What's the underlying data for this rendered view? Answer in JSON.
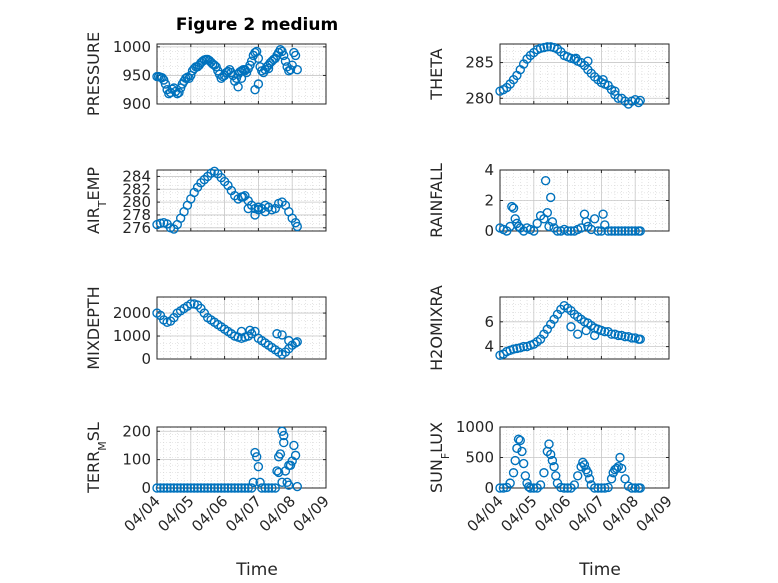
{
  "figure": {
    "title": "Figure 2 medium",
    "xlabel": "Time",
    "x_tick_labels": [
      "04/04",
      "04/05",
      "04/06",
      "04/07",
      "04/08",
      "04/09"
    ],
    "marker_color": "#0072BD"
  },
  "chart_data": [
    {
      "type": "scatter",
      "ylabel": "PRESSURE",
      "yticks": [
        900,
        950,
        1000
      ],
      "ylim": [
        900,
        1005
      ],
      "xlim": [
        0,
        5
      ],
      "grid": true,
      "x": [
        0.0,
        0.05,
        0.1,
        0.15,
        0.2,
        0.25,
        0.3,
        0.35,
        0.4,
        0.45,
        0.5,
        0.55,
        0.6,
        0.65,
        0.7,
        0.75,
        0.8,
        0.85,
        0.9,
        0.95,
        1.0,
        1.05,
        1.1,
        1.15,
        1.2,
        1.25,
        1.3,
        1.35,
        1.4,
        1.45,
        1.5,
        1.55,
        1.6,
        1.65,
        1.7,
        1.75,
        1.8,
        1.85,
        1.9,
        1.95,
        2.0,
        2.05,
        2.1,
        2.15,
        2.2,
        2.25,
        2.3,
        2.35,
        2.4,
        2.45,
        2.5,
        2.55,
        2.6,
        2.65,
        2.7,
        2.75,
        2.8,
        2.85,
        2.9,
        2.95,
        3.0,
        3.05,
        3.1,
        3.15,
        3.2,
        3.25,
        3.3,
        3.35,
        3.4,
        3.45,
        3.5,
        3.55,
        3.6,
        3.65,
        3.7,
        3.75,
        3.8,
        3.85,
        3.9,
        3.95,
        4.0,
        4.05,
        4.1,
        4.15,
        2.4,
        2.5,
        2.6,
        2.9,
        3.0,
        3.3
      ],
      "y": [
        948,
        948,
        947,
        946,
        942,
        935,
        925,
        918,
        920,
        926,
        928,
        922,
        918,
        920,
        928,
        935,
        940,
        945,
        947,
        945,
        950,
        958,
        962,
        965,
        965,
        968,
        972,
        975,
        977,
        978,
        978,
        976,
        973,
        970,
        968,
        965,
        958,
        952,
        945,
        948,
        950,
        955,
        957,
        960,
        955,
        950,
        940,
        945,
        952,
        956,
        958,
        960,
        958,
        955,
        962,
        968,
        975,
        985,
        990,
        992,
        980,
        965,
        958,
        955,
        960,
        965,
        968,
        972,
        975,
        978,
        980,
        985,
        990,
        995,
        992,
        985,
        975,
        965,
        958,
        960,
        968,
        990,
        985,
        960,
        930,
        945,
        960,
        925,
        935,
        962
      ]
    },
    {
      "type": "scatter",
      "ylabel": "THETA",
      "yticks": [
        280,
        285
      ],
      "ylim": [
        279.2,
        287.6
      ],
      "xlim": [
        0,
        5
      ],
      "grid": true,
      "x": [
        0.0,
        0.1,
        0.2,
        0.3,
        0.4,
        0.5,
        0.6,
        0.7,
        0.8,
        0.9,
        1.0,
        1.1,
        1.2,
        1.3,
        1.4,
        1.5,
        1.6,
        1.7,
        1.8,
        1.9,
        2.0,
        2.1,
        2.2,
        2.3,
        2.4,
        2.5,
        2.6,
        2.7,
        2.8,
        2.9,
        3.0,
        3.1,
        3.2,
        3.3,
        3.4,
        3.5,
        3.6,
        3.7,
        3.8,
        3.9,
        4.0,
        4.1,
        4.15,
        2.25,
        2.6,
        3.05,
        3.4
      ],
      "y": [
        281.0,
        281.2,
        281.5,
        282.0,
        282.6,
        283.2,
        284.0,
        284.8,
        285.5,
        286.0,
        286.4,
        286.8,
        287.0,
        287.1,
        287.2,
        287.2,
        287.1,
        286.9,
        286.5,
        286.0,
        285.8,
        285.6,
        285.5,
        285.2,
        285.0,
        284.6,
        284.0,
        283.5,
        283.0,
        282.6,
        282.2,
        282.0,
        281.8,
        281.2,
        280.5,
        280.0,
        280.0,
        279.6,
        279.2,
        279.6,
        279.8,
        279.4,
        279.7,
        285.6,
        285.2,
        282.6,
        281.0
      ]
    },
    {
      "type": "scatter",
      "ylabel": "AIR_TEMP",
      "yticks": [
        276,
        278,
        280,
        282,
        284
      ],
      "ylim": [
        275.5,
        285
      ],
      "xlim": [
        0,
        5
      ],
      "grid": true,
      "x": [
        0.0,
        0.1,
        0.2,
        0.3,
        0.4,
        0.5,
        0.6,
        0.7,
        0.8,
        0.9,
        1.0,
        1.1,
        1.2,
        1.3,
        1.4,
        1.5,
        1.6,
        1.7,
        1.8,
        1.9,
        2.0,
        2.1,
        2.2,
        2.3,
        2.4,
        2.5,
        2.6,
        2.7,
        2.8,
        2.9,
        3.0,
        3.1,
        3.2,
        3.3,
        3.4,
        3.5,
        3.6,
        3.7,
        3.8,
        3.9,
        4.0,
        4.1,
        4.15,
        2.55,
        2.7,
        2.9,
        3.0,
        3.2
      ],
      "y": [
        276.5,
        276.7,
        276.8,
        276.6,
        276.0,
        275.8,
        276.5,
        277.5,
        278.5,
        279.5,
        280.5,
        281.5,
        282.3,
        283.0,
        283.5,
        284.0,
        284.5,
        284.8,
        284.4,
        283.8,
        283.2,
        282.6,
        281.8,
        281.0,
        280.5,
        280.8,
        281.0,
        280.2,
        279.5,
        279.0,
        278.8,
        279.0,
        279.5,
        279.2,
        278.8,
        279.0,
        279.8,
        280.0,
        279.5,
        278.5,
        277.5,
        276.8,
        276.2,
        280.8,
        279.0,
        278.0,
        279.2,
        278.5
      ]
    },
    {
      "type": "scatter",
      "ylabel": "RAINFALL",
      "yticks": [
        0,
        2,
        4
      ],
      "ylim": [
        0,
        4
      ],
      "xlim": [
        0,
        5
      ],
      "grid": true,
      "x": [
        0.0,
        0.1,
        0.2,
        0.3,
        0.35,
        0.4,
        0.45,
        0.5,
        0.55,
        0.6,
        0.7,
        0.8,
        0.9,
        1.0,
        1.1,
        1.2,
        1.3,
        1.35,
        1.4,
        1.45,
        1.5,
        1.55,
        1.6,
        1.7,
        1.8,
        1.9,
        2.0,
        2.1,
        2.2,
        2.3,
        2.4,
        2.5,
        2.55,
        2.6,
        2.7,
        2.8,
        2.9,
        3.0,
        3.05,
        3.1,
        3.2,
        3.3,
        3.4,
        3.5,
        3.6,
        3.7,
        3.8,
        3.9,
        4.0,
        4.1,
        4.15
      ],
      "y": [
        0.2,
        0.1,
        0.0,
        0.3,
        1.6,
        1.5,
        0.8,
        0.5,
        0.3,
        0.2,
        0.0,
        0.2,
        0.1,
        0.0,
        0.5,
        1.0,
        0.8,
        3.3,
        1.2,
        0.3,
        2.2,
        0.6,
        0.2,
        0.0,
        0.0,
        0.1,
        0.0,
        0.0,
        0.0,
        0.1,
        0.2,
        1.1,
        0.6,
        0.3,
        0.1,
        0.8,
        0.0,
        0.0,
        1.1,
        0.4,
        0.0,
        0.0,
        0.0,
        0.0,
        0.0,
        0.0,
        0.0,
        0.0,
        0.0,
        0.0,
        0.0
      ]
    },
    {
      "type": "scatter",
      "ylabel": "MIXDEPTH",
      "yticks": [
        0,
        1000,
        2000
      ],
      "ylim": [
        0,
        2700
      ],
      "xlim": [
        0,
        5
      ],
      "grid": true,
      "x": [
        0.0,
        0.1,
        0.2,
        0.3,
        0.4,
        0.5,
        0.6,
        0.7,
        0.8,
        0.9,
        1.0,
        1.1,
        1.2,
        1.3,
        1.4,
        1.5,
        1.6,
        1.7,
        1.8,
        1.9,
        2.0,
        2.1,
        2.2,
        2.3,
        2.4,
        2.5,
        2.6,
        2.7,
        2.8,
        2.9,
        3.0,
        3.1,
        3.2,
        3.3,
        3.4,
        3.5,
        3.6,
        3.7,
        3.8,
        3.9,
        4.0,
        4.1,
        4.15,
        2.5,
        2.75,
        3.55,
        3.7,
        3.9
      ],
      "y": [
        2000,
        1900,
        1700,
        1600,
        1650,
        1800,
        2000,
        2100,
        2200,
        2300,
        2400,
        2400,
        2350,
        2200,
        2000,
        1800,
        1700,
        1600,
        1500,
        1400,
        1300,
        1200,
        1100,
        1000,
        950,
        900,
        950,
        1000,
        1100,
        1200,
        900,
        800,
        700,
        600,
        500,
        400,
        300,
        200,
        300,
        450,
        600,
        700,
        750,
        1200,
        1250,
        1100,
        1050,
        800
      ]
    },
    {
      "type": "scatter",
      "ylabel": "H2OMIXRA",
      "yticks": [
        4,
        6
      ],
      "ylim": [
        3,
        8
      ],
      "xlim": [
        0,
        5
      ],
      "grid": true,
      "x": [
        0.0,
        0.1,
        0.2,
        0.3,
        0.4,
        0.5,
        0.6,
        0.7,
        0.8,
        0.9,
        1.0,
        1.1,
        1.2,
        1.3,
        1.4,
        1.5,
        1.6,
        1.7,
        1.8,
        1.9,
        2.0,
        2.1,
        2.2,
        2.3,
        2.4,
        2.5,
        2.6,
        2.7,
        2.8,
        2.9,
        3.0,
        3.1,
        3.2,
        3.3,
        3.4,
        3.5,
        3.6,
        3.7,
        3.8,
        3.9,
        4.0,
        4.1,
        4.15,
        2.1,
        2.3,
        2.55,
        2.8
      ],
      "y": [
        3.3,
        3.4,
        3.6,
        3.7,
        3.8,
        3.85,
        3.9,
        4.0,
        4.0,
        4.1,
        4.2,
        4.4,
        4.6,
        5.0,
        5.4,
        5.8,
        6.2,
        6.6,
        7.0,
        7.3,
        7.1,
        6.9,
        6.6,
        6.4,
        6.2,
        6.0,
        5.9,
        5.7,
        5.5,
        5.4,
        5.3,
        5.2,
        5.2,
        5.0,
        5.0,
        4.9,
        4.9,
        4.8,
        4.8,
        4.7,
        4.7,
        4.6,
        4.6,
        5.6,
        5.0,
        5.3,
        4.9
      ]
    },
    {
      "type": "scatter",
      "ylabel": "TERR_MSL",
      "yticks": [
        0,
        100,
        200
      ],
      "ylim": [
        0,
        215
      ],
      "xlim": [
        0,
        5
      ],
      "grid": true,
      "x": [
        0.0,
        0.1,
        0.2,
        0.3,
        0.4,
        0.5,
        0.6,
        0.7,
        0.8,
        0.9,
        1.0,
        1.1,
        1.2,
        1.3,
        1.4,
        1.5,
        1.6,
        1.7,
        1.8,
        1.9,
        2.0,
        2.1,
        2.2,
        2.3,
        2.4,
        2.5,
        2.6,
        2.7,
        2.8,
        2.85,
        2.9,
        2.95,
        3.0,
        3.05,
        3.1,
        3.2,
        3.3,
        3.4,
        3.5,
        3.55,
        3.6,
        3.65,
        3.7,
        3.75,
        3.8,
        3.85,
        3.9,
        3.95,
        4.0,
        4.05,
        4.1,
        4.15,
        3.6,
        3.7,
        3.75,
        3.9
      ],
      "y": [
        0,
        0,
        0,
        0,
        0,
        0,
        0,
        0,
        0,
        0,
        0,
        0,
        0,
        0,
        0,
        0,
        0,
        0,
        0,
        0,
        0,
        0,
        0,
        0,
        0,
        0,
        0,
        0,
        0,
        20,
        125,
        110,
        75,
        20,
        0,
        0,
        0,
        0,
        0,
        60,
        110,
        120,
        200,
        185,
        60,
        20,
        10,
        80,
        95,
        150,
        115,
        5,
        55,
        20,
        160,
        80
      ]
    },
    {
      "type": "scatter",
      "ylabel": "SUN_FLUX",
      "yticks": [
        0,
        500,
        1000
      ],
      "ylim": [
        0,
        1000
      ],
      "xlim": [
        0,
        5
      ],
      "grid": true,
      "x": [
        0.0,
        0.1,
        0.2,
        0.3,
        0.4,
        0.45,
        0.5,
        0.55,
        0.6,
        0.65,
        0.7,
        0.75,
        0.8,
        0.85,
        0.9,
        1.0,
        1.1,
        1.2,
        1.3,
        1.4,
        1.45,
        1.5,
        1.55,
        1.6,
        1.65,
        1.7,
        1.8,
        1.9,
        2.0,
        2.1,
        2.2,
        2.3,
        2.4,
        2.45,
        2.5,
        2.55,
        2.6,
        2.65,
        2.7,
        2.8,
        2.9,
        3.0,
        3.1,
        3.2,
        3.3,
        3.35,
        3.4,
        3.45,
        3.5,
        3.55,
        3.6,
        3.7,
        3.8,
        3.9,
        4.0,
        4.1,
        4.15
      ],
      "y": [
        0,
        0,
        10,
        80,
        250,
        450,
        650,
        800,
        780,
        600,
        400,
        200,
        80,
        20,
        0,
        0,
        0,
        50,
        250,
        600,
        720,
        550,
        450,
        350,
        200,
        80,
        10,
        0,
        0,
        0,
        50,
        200,
        350,
        420,
        380,
        300,
        250,
        150,
        50,
        0,
        0,
        0,
        0,
        10,
        150,
        250,
        300,
        320,
        350,
        500,
        320,
        150,
        30,
        0,
        0,
        0,
        0
      ]
    }
  ]
}
